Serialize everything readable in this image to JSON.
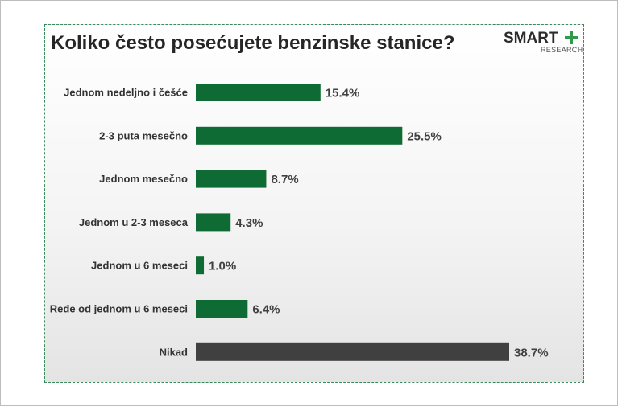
{
  "title": "Koliko često posećujete benzinske stanice?",
  "logo": {
    "word": "SMART",
    "sub": "RESEARCH"
  },
  "colors": {
    "bar": "#0f6b34",
    "highlight_bar": "#404040",
    "logo_plus": "#2e9a4a"
  },
  "chart_data": {
    "type": "bar",
    "orientation": "horizontal",
    "categories": [
      "Jednom nedeljno i češće",
      "2-3 puta mesečno",
      "Jednom mesečno",
      "Jednom u 2-3 meseca",
      "Jednom u 6 meseci",
      "Ređe od jednom u 6 meseci",
      "Nikad"
    ],
    "values": [
      15.4,
      25.5,
      8.7,
      4.3,
      1.0,
      6.4,
      38.7
    ],
    "value_labels": [
      "15.4%",
      "25.5%",
      "8.7%",
      "4.3%",
      "1.0%",
      "6.4%",
      "38.7%"
    ],
    "highlight_index": 6,
    "xlim": [
      0,
      38.7
    ],
    "grid": false,
    "legend": "none"
  }
}
